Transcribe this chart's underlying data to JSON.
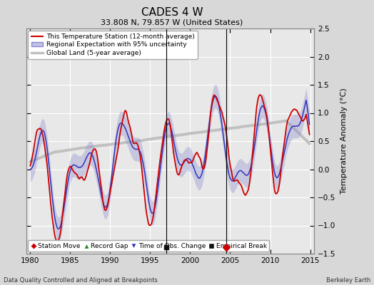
{
  "title": "CADES 4 W",
  "subtitle": "33.808 N, 79.857 W (United States)",
  "ylabel": "Temperature Anomaly (°C)",
  "xlabel_left": "Data Quality Controlled and Aligned at Breakpoints",
  "xlabel_right": "Berkeley Earth",
  "xlim": [
    1979.5,
    2015.5
  ],
  "ylim": [
    -1.5,
    2.5
  ],
  "yticks": [
    -1.5,
    -1.0,
    -0.5,
    0.0,
    0.5,
    1.0,
    1.5,
    2.0,
    2.5
  ],
  "xticks": [
    1980,
    1985,
    1990,
    1995,
    2000,
    2005,
    2010,
    2015
  ],
  "background_color": "#d8d8d8",
  "plot_bg_color": "#e8e8e8",
  "grid_color": "#ffffff",
  "empirical_break_x": 1997.0,
  "station_move_x": 2004.5,
  "legend_items": [
    {
      "label": "This Temperature Station (12-month average)",
      "color": "#dd0000",
      "lw": 1.5
    },
    {
      "label": "Regional Expectation with 95% uncertainty",
      "color": "#3333bb",
      "lw": 1.2
    },
    {
      "label": "Global Land (5-year average)",
      "color": "#b0b0b0",
      "lw": 2.5
    }
  ],
  "marker_items": [
    {
      "label": "Station Move",
      "color": "#dd0000",
      "marker": "D"
    },
    {
      "label": "Record Gap",
      "color": "#228822",
      "marker": "^"
    },
    {
      "label": "Time of Obs. Change",
      "color": "#3333bb",
      "marker": "v"
    },
    {
      "label": "Empirical Break",
      "color": "#111111",
      "marker": "s"
    }
  ]
}
